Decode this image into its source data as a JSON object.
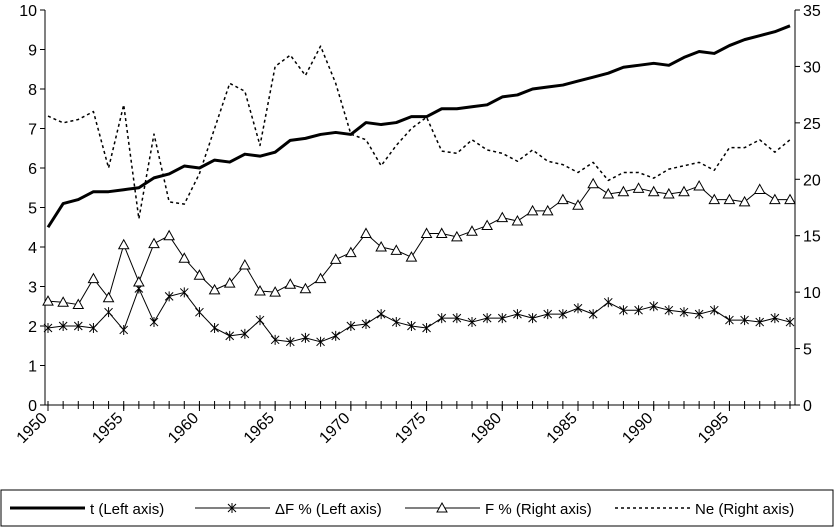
{
  "chart_data": {
    "type": "line",
    "x": [
      1950,
      1951,
      1952,
      1953,
      1954,
      1955,
      1956,
      1957,
      1958,
      1959,
      1960,
      1961,
      1962,
      1963,
      1964,
      1965,
      1966,
      1967,
      1968,
      1969,
      1970,
      1971,
      1972,
      1973,
      1974,
      1975,
      1976,
      1977,
      1978,
      1979,
      1980,
      1981,
      1982,
      1983,
      1984,
      1985,
      1986,
      1987,
      1988,
      1989,
      1990,
      1991,
      1992,
      1993,
      1994,
      1995,
      1996,
      1997,
      1998,
      1999
    ],
    "xlim": [
      1950,
      1999
    ],
    "xticks": [
      1950,
      1955,
      1960,
      1965,
      1970,
      1975,
      1980,
      1985,
      1990,
      1995
    ],
    "ylim": [
      0,
      10
    ],
    "yticks": [
      0,
      1,
      2,
      3,
      4,
      5,
      6,
      7,
      8,
      9,
      10
    ],
    "y2lim": [
      0,
      35
    ],
    "y2ticks": [
      0,
      5,
      10,
      15,
      20,
      25,
      30,
      35
    ],
    "series": [
      {
        "name": "t (Left axis)",
        "color": "#000000",
        "width": 3,
        "marker": "none",
        "dash": "solid",
        "values": [
          4.5,
          5.1,
          5.2,
          5.4,
          5.4,
          5.45,
          5.5,
          5.75,
          5.85,
          6.05,
          6.0,
          6.2,
          6.15,
          6.35,
          6.3,
          6.4,
          6.7,
          6.75,
          6.85,
          6.9,
          6.85,
          7.15,
          7.1,
          7.15,
          7.3,
          7.3,
          7.5,
          7.5,
          7.55,
          7.6,
          7.8,
          7.85,
          8.0,
          8.05,
          8.1,
          8.2,
          8.3,
          8.4,
          8.55,
          8.6,
          8.65,
          8.6,
          8.8,
          8.95,
          8.9,
          9.1,
          9.25,
          9.35,
          9.45,
          9.6
        ]
      },
      {
        "name": "ΔF % (Left axis)",
        "color": "#000000",
        "width": 1,
        "marker": "asterisk",
        "dash": "solid",
        "values": [
          1.95,
          2.0,
          2.0,
          1.95,
          2.35,
          1.9,
          2.95,
          2.1,
          2.75,
          2.85,
          2.35,
          1.95,
          1.75,
          1.8,
          2.15,
          1.65,
          1.6,
          1.7,
          1.6,
          1.75,
          2.0,
          2.05,
          2.3,
          2.1,
          2.0,
          1.95,
          2.2,
          2.2,
          2.1,
          2.2,
          2.2,
          2.3,
          2.2,
          2.3,
          2.3,
          2.45,
          2.3,
          2.6,
          2.4,
          2.4,
          2.5,
          2.4,
          2.35,
          2.3,
          2.4,
          2.15,
          2.15,
          2.1,
          2.2,
          2.1
        ]
      },
      {
        "name": "F % (Right axis)",
        "color": "#000000",
        "width": 1,
        "marker": "triangle",
        "dash": "solid",
        "axis": "y2",
        "values": [
          9.2,
          9.1,
          8.9,
          11.2,
          9.5,
          14.2,
          10.9,
          14.3,
          15.0,
          13.0,
          11.5,
          10.2,
          10.8,
          12.4,
          10.1,
          10.0,
          10.7,
          10.3,
          11.2,
          12.9,
          13.5,
          15.2,
          14.0,
          13.7,
          13.1,
          15.2,
          15.2,
          14.9,
          15.4,
          15.9,
          16.6,
          16.3,
          17.2,
          17.2,
          18.2,
          17.7,
          19.6,
          18.7,
          18.9,
          19.2,
          18.9,
          18.7,
          18.9,
          19.4,
          18.2,
          18.2,
          18.0,
          19.1,
          18.2,
          18.2
        ]
      },
      {
        "name": "Ne (Right axis)",
        "color": "#000000",
        "width": 1.5,
        "marker": "none",
        "dash": "dotted",
        "axis": "y2",
        "values": [
          25.6,
          25.0,
          25.3,
          26.0,
          21.0,
          26.6,
          16.5,
          24.0,
          18.0,
          17.8,
          20.5,
          24.5,
          28.5,
          27.8,
          23.0,
          30.0,
          31.0,
          29.2,
          31.8,
          28.5,
          24.0,
          23.5,
          21.2,
          23.0,
          24.5,
          25.5,
          22.5,
          22.3,
          23.5,
          22.6,
          22.3,
          21.6,
          22.6,
          21.6,
          21.3,
          20.6,
          21.5,
          19.9,
          20.6,
          20.6,
          20.1,
          20.9,
          21.2,
          21.5,
          20.8,
          22.8,
          22.8,
          23.5,
          22.4,
          23.5
        ]
      }
    ]
  }
}
